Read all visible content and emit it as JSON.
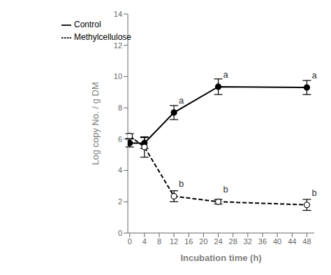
{
  "chart_data": {
    "type": "line",
    "x": [
      0,
      4,
      12,
      24,
      48
    ],
    "series": [
      {
        "name": "Control",
        "color": "#000000",
        "marker": "circle",
        "line_style": "solid",
        "values": [
          5.75,
          5.75,
          7.7,
          9.35,
          9.3
        ],
        "yerr": [
          0.25,
          0.35,
          0.45,
          0.5,
          0.45
        ],
        "point_labels": [
          null,
          null,
          "a",
          "a",
          "a"
        ]
      },
      {
        "name": "Methylcellulose",
        "color": "#000000",
        "marker": "open_circle",
        "line_style": "dashed",
        "values": [
          6.2,
          5.5,
          2.35,
          2.0,
          1.8
        ],
        "yerr": [
          0.15,
          0.65,
          0.35,
          0.15,
          0.35
        ],
        "point_labels": [
          null,
          null,
          "b",
          "b",
          "b"
        ]
      }
    ],
    "xlabel": "Incubation time (h)",
    "ylabel": "Log copy No. / g DM",
    "xlim": [
      -0.5,
      50
    ],
    "ylim": [
      0,
      14
    ],
    "xticks": [
      0,
      4,
      8,
      12,
      16,
      20,
      24,
      28,
      32,
      36,
      40,
      44,
      48
    ],
    "yticks": [
      0,
      2,
      4,
      6,
      8,
      10,
      12,
      14
    ],
    "legend": "upper left",
    "grid": false
  }
}
